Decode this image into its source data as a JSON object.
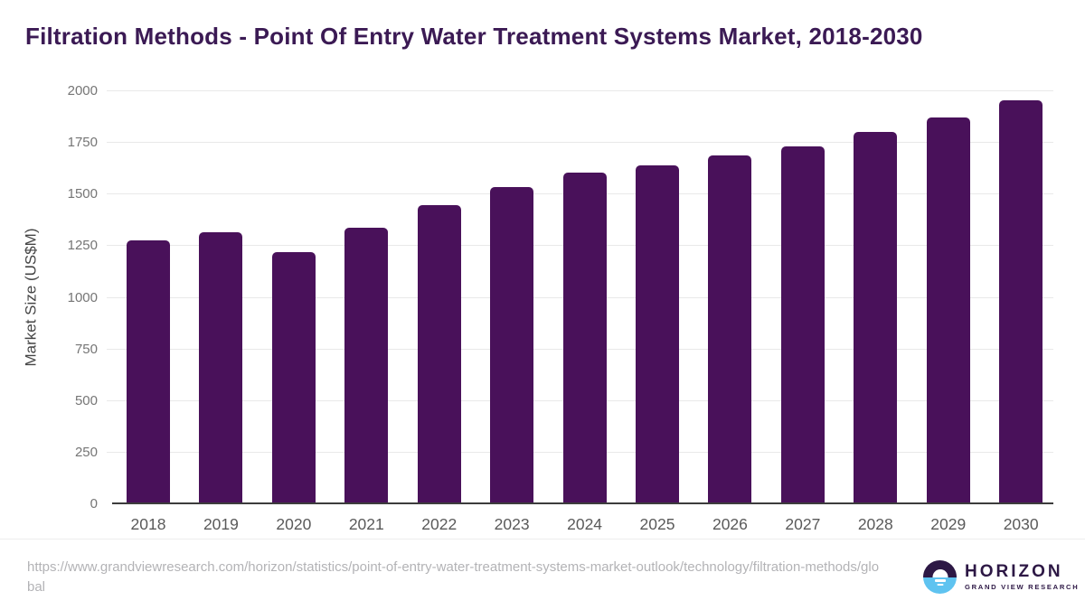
{
  "title": "Filtration Methods - Point Of Entry Water Treatment Systems Market, 2018-2030",
  "chart_data": {
    "type": "bar",
    "categories": [
      "2018",
      "2019",
      "2020",
      "2021",
      "2022",
      "2023",
      "2024",
      "2025",
      "2026",
      "2027",
      "2028",
      "2029",
      "2030"
    ],
    "values": [
      1275,
      1315,
      1215,
      1335,
      1445,
      1530,
      1600,
      1635,
      1685,
      1730,
      1800,
      1870,
      1950
    ],
    "title": "Filtration Methods - Point Of Entry Water Treatment Systems Market, 2018-2030",
    "xlabel": "",
    "ylabel": "Market Size (US$M)",
    "ylim": [
      0,
      2000
    ],
    "ytick_step": 250,
    "yticks": [
      0,
      250,
      500,
      750,
      1000,
      1250,
      1500,
      1750,
      2000
    ],
    "grid": "horizontal",
    "legend": "none",
    "bar_color": "#49115a"
  },
  "footer": {
    "source_url": "https://www.grandviewresearch.com/horizon/statistics/point-of-entry-water-treatment-systems-market-outlook/technology/filtration-methods/global",
    "logo": {
      "brand": "HORIZON",
      "subbrand": "GRAND VIEW RESEARCH"
    }
  },
  "colors": {
    "title": "#3b1a54",
    "bar": "#49115a",
    "gridline": "#e9e9e9",
    "axis_line": "#3c3c3c",
    "tick_label": "#757575",
    "x_label": "#5a5a5a",
    "url_text": "#b3b3b6",
    "logo_purple": "#2d1845",
    "logo_blue": "#5fc3f0"
  }
}
